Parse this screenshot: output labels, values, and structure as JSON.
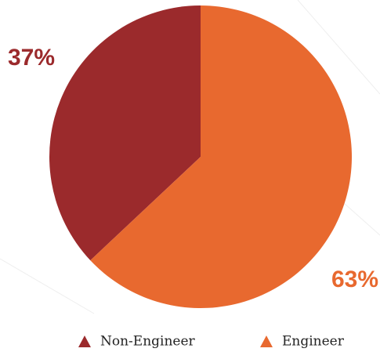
{
  "chart_data": {
    "type": "pie",
    "categories": [
      "Non-Engineer",
      "Engineer"
    ],
    "values": [
      37,
      63
    ],
    "value_labels": [
      "37%",
      "63%"
    ],
    "colors": [
      "#9b2a2c",
      "#e8692f"
    ],
    "legend": "bottom"
  }
}
